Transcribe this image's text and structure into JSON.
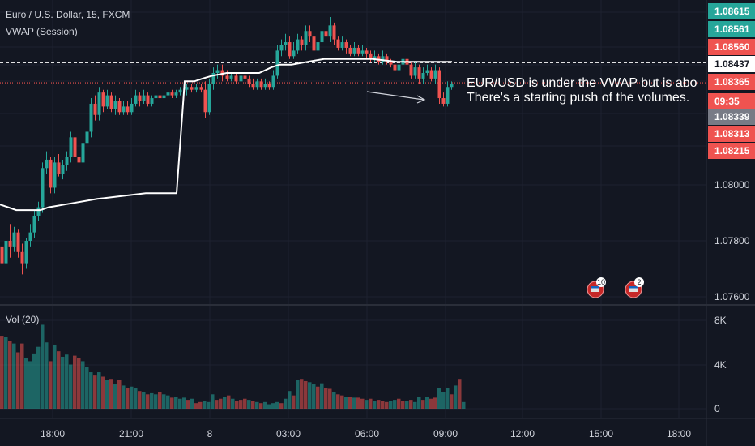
{
  "header": {
    "title": "Euro / U.S. Dollar, 15, FXCM",
    "indicator": "VWAP (Session)",
    "volume_label": "Vol (20)"
  },
  "annotation": {
    "line1": "EUR/USD is under the VWAP but is abo",
    "line2": "There's a starting push of the volumes."
  },
  "colors": {
    "background": "#131722",
    "up": "#26a69a",
    "down": "#ef5350",
    "vwap": "#ffffff",
    "axis_text": "#d1d4dc",
    "grid": "#1e2230"
  },
  "chart_data": [
    {
      "type": "candlestick",
      "title": "Euro / U.S. Dollar, 15, FXCM",
      "y_axis": {
        "ticks": [
          "1.08000",
          "1.07800",
          "1.07600"
        ],
        "ylim": [
          1.0759,
          1.0866
        ]
      },
      "x_axis": {
        "ticks": [
          "18:00",
          "21:00",
          "8",
          "03:00",
          "06:00",
          "09:00",
          "12:00",
          "15:00",
          "18:00"
        ]
      },
      "price_labels": [
        {
          "value": "1.08615",
          "color": "#26a69a"
        },
        {
          "value": "1.08561",
          "color": "#26a69a"
        },
        {
          "value": "1.08560",
          "color": "#ef5350"
        },
        {
          "value": "1.08437",
          "color": "#ffffff"
        },
        {
          "value": "1.08365",
          "color": "#ef5350"
        },
        {
          "value": "09:35",
          "color": "#ef5350"
        },
        {
          "value": "1.08339",
          "color": "#787b86"
        },
        {
          "value": "1.08313",
          "color": "#ef5350"
        },
        {
          "value": "1.08215",
          "color": "#ef5350"
        }
      ],
      "horizontal_lines": [
        {
          "value": 1.08437,
          "style": "dashed",
          "color": "#ffffff"
        },
        {
          "value": 1.08365,
          "style": "dotted",
          "color": "#ef5350"
        }
      ],
      "event_badges": [
        {
          "count": "10"
        },
        {
          "count": "2"
        }
      ],
      "vwap": [
        [
          0,
          1.0793
        ],
        [
          10,
          1.0792
        ],
        [
          20,
          1.0791
        ],
        [
          50,
          1.0791
        ],
        [
          60,
          1.0792
        ],
        [
          80,
          1.0793
        ],
        [
          120,
          1.0795
        ],
        [
          180,
          1.0797
        ],
        [
          218,
          1.0797
        ],
        [
          228,
          1.0837
        ],
        [
          240,
          1.0837
        ],
        [
          250,
          1.0838
        ],
        [
          262,
          1.0839
        ],
        [
          280,
          1.084
        ],
        [
          300,
          1.084
        ],
        [
          320,
          1.084
        ],
        [
          335,
          1.0842
        ],
        [
          345,
          1.0843
        ],
        [
          360,
          1.0843
        ],
        [
          380,
          1.0844
        ],
        [
          400,
          1.0845
        ],
        [
          420,
          1.0845
        ],
        [
          460,
          1.0845
        ],
        [
          490,
          1.0844
        ],
        [
          520,
          1.0844
        ],
        [
          545,
          1.0844
        ],
        [
          558,
          1.0844
        ]
      ],
      "candles": [
        [
          0,
          1.0778,
          1.0772,
          1.0781,
          1.0768
        ],
        [
          5,
          1.0772,
          1.078,
          1.0783,
          1.077
        ],
        [
          10,
          1.078,
          1.0778,
          1.0786,
          1.0774
        ],
        [
          15,
          1.0778,
          1.0783,
          1.0785,
          1.0776
        ],
        [
          20,
          1.0783,
          1.0776,
          1.0784,
          1.0774
        ],
        [
          25,
          1.0776,
          1.0772,
          1.0779,
          1.0768
        ],
        [
          30,
          1.0772,
          1.078,
          1.0781,
          1.077
        ],
        [
          35,
          1.078,
          1.0783,
          1.0786,
          1.0778
        ],
        [
          40,
          1.0783,
          1.0789,
          1.0791,
          1.0781
        ],
        [
          45,
          1.0789,
          1.0792,
          1.0794,
          1.0787
        ],
        [
          50,
          1.0792,
          1.0806,
          1.0808,
          1.079
        ],
        [
          55,
          1.0806,
          1.0809,
          1.0812,
          1.0804
        ],
        [
          60,
          1.0809,
          1.0799,
          1.081,
          1.0797
        ],
        [
          65,
          1.0799,
          1.0808,
          1.081,
          1.0797
        ],
        [
          70,
          1.0808,
          1.0804,
          1.0811,
          1.0803
        ],
        [
          75,
          1.0804,
          1.0807,
          1.0809,
          1.0802
        ],
        [
          80,
          1.0807,
          1.081,
          1.0812,
          1.0805
        ],
        [
          85,
          1.081,
          1.0817,
          1.0819,
          1.0808
        ],
        [
          90,
          1.0817,
          1.081,
          1.0818,
          1.0808
        ],
        [
          95,
          1.081,
          1.0808,
          1.0814,
          1.0806
        ],
        [
          100,
          1.0808,
          1.0815,
          1.0817,
          1.0806
        ],
        [
          105,
          1.0815,
          1.0819,
          1.0822,
          1.0813
        ],
        [
          110,
          1.0819,
          1.0829,
          1.0831,
          1.0817
        ],
        [
          115,
          1.0829,
          1.0825,
          1.0832,
          1.0823
        ],
        [
          120,
          1.0825,
          1.0833,
          1.0835,
          1.0823
        ],
        [
          125,
          1.0833,
          1.0828,
          1.0834,
          1.0826
        ],
        [
          130,
          1.0828,
          1.0832,
          1.0834,
          1.0827
        ],
        [
          135,
          1.0832,
          1.0827,
          1.0833,
          1.0826
        ],
        [
          140,
          1.0827,
          1.083,
          1.0832,
          1.0825
        ],
        [
          145,
          1.083,
          1.0826,
          1.0831,
          1.0825
        ],
        [
          150,
          1.0826,
          1.0828,
          1.083,
          1.0825
        ],
        [
          155,
          1.0828,
          1.0826,
          1.083,
          1.0825
        ],
        [
          160,
          1.0826,
          1.0829,
          1.0831,
          1.0825
        ],
        [
          165,
          1.0829,
          1.0832,
          1.0834,
          1.0828
        ],
        [
          170,
          1.0832,
          1.083,
          1.0833,
          1.0828
        ],
        [
          175,
          1.083,
          1.0832,
          1.0834,
          1.0829
        ],
        [
          180,
          1.0832,
          1.0829,
          1.0833,
          1.0828
        ],
        [
          185,
          1.0829,
          1.0831,
          1.0832,
          1.0828
        ],
        [
          190,
          1.0831,
          1.0832,
          1.0833,
          1.083
        ],
        [
          195,
          1.0832,
          1.0831,
          1.0833,
          1.083
        ],
        [
          200,
          1.0831,
          1.0832,
          1.0833,
          1.083
        ],
        [
          205,
          1.0832,
          1.0833,
          1.0834,
          1.0831
        ],
        [
          210,
          1.0833,
          1.0832,
          1.0834,
          1.0831
        ],
        [
          215,
          1.0832,
          1.0833,
          1.0834,
          1.0831
        ],
        [
          220,
          1.0833,
          1.0834,
          1.0835,
          1.0832
        ],
        [
          228,
          1.0834,
          1.0835,
          1.0836,
          1.0832
        ],
        [
          234,
          1.0835,
          1.0834,
          1.0836,
          1.0833
        ],
        [
          240,
          1.0834,
          1.0835,
          1.0836,
          1.0833
        ],
        [
          246,
          1.0835,
          1.0834,
          1.0836,
          1.0833
        ],
        [
          251,
          1.0834,
          1.0826,
          1.0837,
          1.0824
        ],
        [
          256,
          1.0826,
          1.0836,
          1.0838,
          1.0825
        ],
        [
          261,
          1.0836,
          1.084,
          1.0842,
          1.0834
        ],
        [
          266,
          1.084,
          1.0841,
          1.0843,
          1.0838
        ],
        [
          272,
          1.0841,
          1.0839,
          1.0843,
          1.0837
        ],
        [
          278,
          1.0839,
          1.0838,
          1.0841,
          1.0837
        ],
        [
          283,
          1.0838,
          1.0839,
          1.084,
          1.0837
        ],
        [
          289,
          1.0839,
          1.0837,
          1.084,
          1.0836
        ],
        [
          295,
          1.0837,
          1.0839,
          1.084,
          1.0836
        ],
        [
          300,
          1.0839,
          1.0838,
          1.084,
          1.0837
        ],
        [
          305,
          1.0838,
          1.0836,
          1.0839,
          1.0835
        ],
        [
          310,
          1.0836,
          1.0835,
          1.0838,
          1.0834
        ],
        [
          315,
          1.0835,
          1.0837,
          1.0838,
          1.0834
        ],
        [
          320,
          1.0837,
          1.0835,
          1.0838,
          1.0834
        ],
        [
          325,
          1.0835,
          1.0836,
          1.0838,
          1.0834
        ],
        [
          330,
          1.0836,
          1.0835,
          1.0837,
          1.0834
        ],
        [
          335,
          1.0835,
          1.0839,
          1.0841,
          1.0834
        ],
        [
          340,
          1.0839,
          1.0848,
          1.085,
          1.0838
        ],
        [
          345,
          1.0848,
          1.085,
          1.0852,
          1.0846
        ],
        [
          350,
          1.085,
          1.0851,
          1.0854,
          1.0848
        ],
        [
          355,
          1.0851,
          1.0846,
          1.0853,
          1.0845
        ],
        [
          360,
          1.0846,
          1.0848,
          1.0851,
          1.0845
        ],
        [
          365,
          1.0848,
          1.0852,
          1.0854,
          1.0847
        ],
        [
          370,
          1.0852,
          1.085,
          1.0853,
          1.0848
        ],
        [
          375,
          1.085,
          1.0855,
          1.0857,
          1.0848
        ],
        [
          380,
          1.0855,
          1.0853,
          1.0857,
          1.0851
        ],
        [
          385,
          1.0853,
          1.0848,
          1.0854,
          1.0847
        ],
        [
          390,
          1.0848,
          1.0851,
          1.0853,
          1.0847
        ],
        [
          395,
          1.0851,
          1.0855,
          1.0858,
          1.085
        ],
        [
          400,
          1.0855,
          1.0853,
          1.0859,
          1.0851
        ],
        [
          405,
          1.0853,
          1.0857,
          1.086,
          1.0851
        ],
        [
          410,
          1.0857,
          1.0852,
          1.0858,
          1.085
        ],
        [
          415,
          1.0852,
          1.0849,
          1.0853,
          1.0848
        ],
        [
          420,
          1.0849,
          1.0851,
          1.0853,
          1.0848
        ],
        [
          425,
          1.0851,
          1.0849,
          1.0852,
          1.0847
        ],
        [
          430,
          1.0849,
          1.0847,
          1.085,
          1.0846
        ],
        [
          435,
          1.0847,
          1.0849,
          1.0851,
          1.0846
        ],
        [
          440,
          1.0849,
          1.0847,
          1.085,
          1.0846
        ],
        [
          445,
          1.0847,
          1.0848,
          1.085,
          1.0846
        ],
        [
          450,
          1.0848,
          1.0847,
          1.0849,
          1.0845
        ],
        [
          455,
          1.0847,
          1.0845,
          1.0848,
          1.0844
        ],
        [
          460,
          1.0845,
          1.0846,
          1.0848,
          1.0844
        ],
        [
          465,
          1.0846,
          1.0844,
          1.0847,
          1.0843
        ],
        [
          470,
          1.0844,
          1.0846,
          1.0848,
          1.0843
        ],
        [
          475,
          1.0846,
          1.0844,
          1.0847,
          1.0843
        ],
        [
          480,
          1.0844,
          1.0843,
          1.0845,
          1.0842
        ],
        [
          485,
          1.0843,
          1.0841,
          1.0844,
          1.084
        ],
        [
          490,
          1.0841,
          1.0843,
          1.0845,
          1.084
        ],
        [
          495,
          1.0843,
          1.0845,
          1.0846,
          1.0841
        ],
        [
          500,
          1.0845,
          1.0843,
          1.0846,
          1.0842
        ],
        [
          505,
          1.0843,
          1.0839,
          1.0844,
          1.0838
        ],
        [
          510,
          1.0839,
          1.0842,
          1.0844,
          1.0838
        ],
        [
          515,
          1.0842,
          1.0838,
          1.0843,
          1.0836
        ],
        [
          520,
          1.0838,
          1.084,
          1.0842,
          1.0836
        ],
        [
          525,
          1.084,
          1.0841,
          1.0843,
          1.0839
        ],
        [
          530,
          1.0841,
          1.0838,
          1.0842,
          1.0837
        ],
        [
          535,
          1.0838,
          1.0841,
          1.0843,
          1.0836
        ],
        [
          540,
          1.0841,
          1.0831,
          1.0842,
          1.0829
        ],
        [
          545,
          1.0831,
          1.0829,
          1.0833,
          1.0828
        ],
        [
          550,
          1.0829,
          1.0835,
          1.0837,
          1.0828
        ],
        [
          555,
          1.0835,
          1.0836,
          1.0837,
          1.0834
        ]
      ]
    },
    {
      "type": "bar",
      "title": "Vol (20)",
      "y_axis": {
        "ticks": [
          "8K",
          "4K",
          "0"
        ],
        "ylim": [
          0,
          8000
        ]
      },
      "values": [
        6600,
        6500,
        6100,
        5900,
        5100,
        5900,
        4600,
        4300,
        5000,
        5600,
        7600,
        6000,
        4300,
        5800,
        5200,
        4700,
        4900,
        4000,
        4800,
        4600,
        4300,
        3800,
        3300,
        3000,
        3300,
        2900,
        2600,
        2700,
        2200,
        2600,
        2100,
        1900,
        2000,
        1900,
        1600,
        1500,
        1300,
        1400,
        1300,
        1500,
        1300,
        1200,
        1000,
        1100,
        900,
        1000,
        800,
        900,
        500,
        600,
        700,
        600,
        1300,
        800,
        900,
        1100,
        1200,
        900,
        700,
        800,
        900,
        800,
        700,
        600,
        500,
        600,
        400,
        500,
        600,
        500,
        900,
        1600,
        1200,
        2600,
        2700,
        2500,
        2400,
        2200,
        2000,
        2300,
        1900,
        1800,
        1500,
        1300,
        1200,
        1100,
        1100,
        1000,
        1000,
        900,
        800,
        900,
        700,
        800,
        700,
        600,
        700,
        800,
        900,
        700,
        700,
        800,
        600,
        1100,
        800,
        1100,
        900,
        1000,
        1900,
        1500,
        1900,
        1300,
        2100,
        2700,
        600
      ]
    }
  ]
}
